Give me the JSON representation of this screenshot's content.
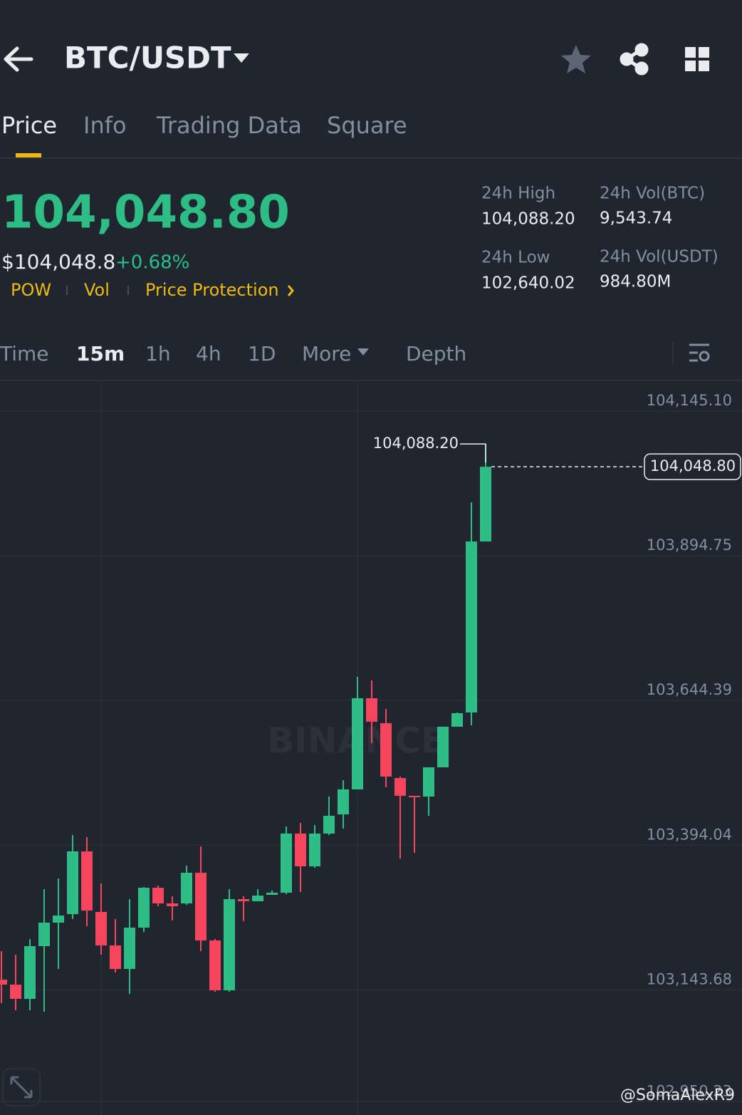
{
  "header": {
    "pair": "BTC/USDT"
  },
  "tabs": [
    "Price",
    "Info",
    "Trading Data",
    "Square"
  ],
  "price": {
    "last": "104,048.80",
    "usd": "$104,048.8",
    "change": "+0.68%",
    "tags": [
      "POW",
      "Vol",
      "Price Protection"
    ]
  },
  "stats": [
    {
      "label": "24h High",
      "value": "104,088.20"
    },
    {
      "label": "24h Vol(BTC)",
      "value": "9,543.74"
    },
    {
      "label": "24h Low",
      "value": "102,640.02"
    },
    {
      "label": "24h Vol(USDT)",
      "value": "984.80M"
    }
  ],
  "intervals": [
    "Time",
    "15m",
    "1h",
    "4h",
    "1D",
    "More",
    "Depth"
  ],
  "chart_data": {
    "type": "candlestick",
    "open": [
      103161.5,
      103152.9,
      103128.2,
      103219.4,
      103260.1,
      103274.9,
      103383.4,
      103278.6,
      103220.6,
      103180.0,
      103251.5,
      103320.5,
      103293.4,
      103293.4,
      103346.4,
      103229.3,
      103143.0,
      103300.8,
      103297.1,
      103308.2,
      103311.9,
      103414.2,
      103357.5,
      103414.2,
      103447.4,
      103490.6,
      103648.4,
      103605.2,
      103510.3,
      103479.5,
      103478.3,
      103528.8,
      103599.1,
      103623.7,
      103919.5
    ],
    "high": [
      103210.8,
      103204.6,
      103231.7,
      103318.0,
      103336.5,
      103411.7,
      103408.0,
      103327.9,
      103266.3,
      103300.8,
      103321.7,
      103324.2,
      103305.7,
      103358.7,
      103392.0,
      103231.7,
      103318.0,
      103305.7,
      103318.0,
      103315.6,
      103426.5,
      103432.7,
      103429.0,
      103478.3,
      103506.6,
      103685.3,
      103679.2,
      103629.9,
      103512.8,
      103479.5,
      103528.8,
      103599.1,
      103623.7,
      103987.3,
      104088.2
    ],
    "low": [
      103120.8,
      103108.5,
      103108.5,
      103106.0,
      103180.0,
      103266.3,
      103253.9,
      103204.6,
      103173.8,
      103136.8,
      103244.1,
      103288.4,
      103263.8,
      103290.9,
      103210.8,
      103140.5,
      103140.5,
      103262.6,
      103297.1,
      103308.2,
      103309.4,
      103313.1,
      103355.0,
      103411.7,
      103422.8,
      103490.6,
      103570.7,
      103494.3,
      103371.0,
      103380.9,
      103445.0,
      103528.8,
      103599.1,
      103601.5,
      103919.5
    ],
    "close": [
      103152.9,
      103128.2,
      103219.4,
      103260.1,
      103272.4,
      103383.4,
      103281.0,
      103220.6,
      103180.0,
      103251.5,
      103320.5,
      103293.4,
      103288.4,
      103346.4,
      103229.3,
      103143.0,
      103300.8,
      103297.1,
      103306.9,
      103311.9,
      103414.2,
      103357.5,
      103414.2,
      103445.0,
      103490.6,
      103648.4,
      103607.7,
      103512.8,
      103479.5,
      103478.3,
      103528.8,
      103599.1,
      103622.5,
      103919.5,
      104048.8
    ],
    "ylim": [
      102927.3,
      104196.9
    ],
    "yticks": [
      {
        "value": 104145.1,
        "label": "104,145.10"
      },
      {
        "value": 103894.75,
        "label": "103,894.75"
      },
      {
        "value": 103644.39,
        "label": "103,644.39"
      },
      {
        "value": 103394.04,
        "label": "103,394.04"
      },
      {
        "value": 103143.68,
        "label": "103,143.68"
      },
      {
        "value": 102950.23,
        "label": "102,950.23"
      }
    ],
    "high_marker": {
      "value": 104088.2,
      "label": "104,088.20"
    },
    "last_marker": {
      "value": 104048.8,
      "label": "104,048.80"
    },
    "up_color": "#2ebd85",
    "down_color": "#f6465d",
    "grid": true,
    "watermark": "BINANCE"
  },
  "footer": {
    "watermark": "@SomaAlexR9"
  }
}
